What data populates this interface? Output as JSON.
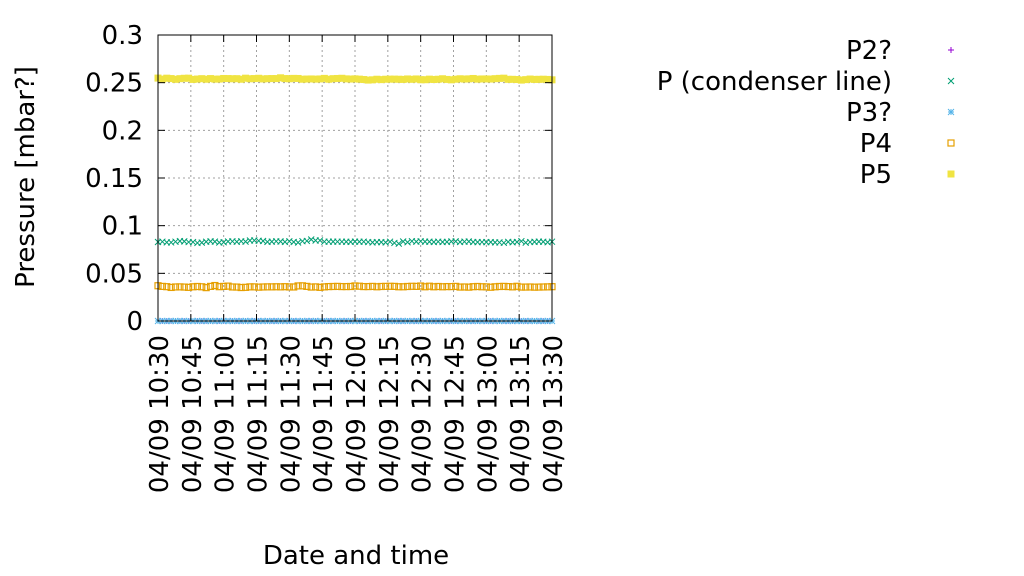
{
  "chart_data": {
    "type": "scatter",
    "xlabel": "Date and time",
    "ylabel": "Pressure [mbar?]",
    "ylim": [
      0,
      0.3
    ],
    "yticks": [
      0,
      0.05,
      0.1,
      0.15,
      0.2,
      0.25,
      0.3
    ],
    "ytick_labels": [
      "0",
      "0.05",
      "0.1",
      "0.15",
      "0.2",
      "0.25",
      "0.3"
    ],
    "xlim": [
      "04/09 10:30",
      "04/09 13:30"
    ],
    "xtick_labels": [
      "04/09 10:30",
      "04/09 10:45",
      "04/09 11:00",
      "04/09 11:15",
      "04/09 11:30",
      "04/09 11:45",
      "04/09 12:00",
      "04/09 12:15",
      "04/09 12:30",
      "04/09 12:45",
      "04/09 13:00",
      "04/09 13:15",
      "04/09 13:30"
    ],
    "grid": true,
    "legend_position": "right",
    "x": [
      "10:30",
      "10:32",
      "10:34",
      "10:36",
      "10:38",
      "10:40",
      "10:42",
      "10:44",
      "10:46",
      "10:48",
      "10:50",
      "10:52",
      "10:54",
      "10:56",
      "10:58",
      "11:00",
      "11:02",
      "11:04",
      "11:06",
      "11:08",
      "11:10",
      "11:12",
      "11:14",
      "11:16",
      "11:18",
      "11:20",
      "11:22",
      "11:24",
      "11:26",
      "11:28",
      "11:30",
      "11:32",
      "11:34",
      "11:36",
      "11:38",
      "11:40",
      "11:42",
      "11:44",
      "11:46",
      "11:48",
      "11:50",
      "11:52",
      "11:54",
      "11:56",
      "11:58",
      "12:00",
      "12:02",
      "12:04",
      "12:06",
      "12:08",
      "12:10",
      "12:12",
      "12:14",
      "12:16",
      "12:18",
      "12:20",
      "12:22",
      "12:24",
      "12:26",
      "12:28",
      "12:30",
      "12:32",
      "12:34",
      "12:36",
      "12:38",
      "12:40",
      "12:42",
      "12:44",
      "12:46",
      "12:48",
      "12:50",
      "12:52",
      "12:54",
      "12:56",
      "12:58",
      "13:00",
      "13:02",
      "13:04",
      "13:06",
      "13:08",
      "13:10",
      "13:12",
      "13:14",
      "13:16",
      "13:18",
      "13:20",
      "13:22",
      "13:24",
      "13:26",
      "13:28",
      "13:30"
    ],
    "series": [
      {
        "name": "P2?",
        "marker": "plus",
        "color": "#9400d3",
        "values": [
          0.0,
          0.0,
          0.0,
          0.0,
          0.0,
          0.0,
          0.0,
          0.0,
          0.0,
          0.0,
          0.0,
          0.0,
          0.0,
          0.0,
          0.0,
          0.0,
          0.0,
          0.0,
          0.0,
          0.0,
          0.0,
          0.0,
          0.0,
          0.0,
          0.0,
          0.0,
          0.0,
          0.0,
          0.0,
          0.0,
          0.0,
          0.0,
          0.0,
          0.0,
          0.0,
          0.0,
          0.0,
          0.0,
          0.0,
          0.0,
          0.0,
          0.0,
          0.0,
          0.0,
          0.0,
          0.0,
          0.0,
          0.0,
          0.0,
          0.0,
          0.0,
          0.0,
          0.0,
          0.0,
          0.0,
          0.0,
          0.0,
          0.0,
          0.0,
          0.0,
          0.0,
          0.0,
          0.0,
          0.0,
          0.0,
          0.0,
          0.0,
          0.0,
          0.0,
          0.0,
          0.0,
          0.0,
          0.0,
          0.0,
          0.0,
          0.0,
          0.0,
          0.0,
          0.0,
          0.0,
          0.0,
          0.0,
          0.0,
          0.0,
          0.0,
          0.0,
          0.0,
          0.0,
          0.0,
          0.0,
          0.0
        ]
      },
      {
        "name": "P (condenser line)",
        "marker": "cross",
        "color": "#009e73",
        "values": [
          0.0829,
          0.0832,
          0.0825,
          0.0824,
          0.0832,
          0.0838,
          0.0835,
          0.0828,
          0.0828,
          0.0819,
          0.0822,
          0.0831,
          0.0835,
          0.0833,
          0.0823,
          0.0826,
          0.0834,
          0.0836,
          0.0831,
          0.0836,
          0.0833,
          0.0844,
          0.0845,
          0.0841,
          0.0839,
          0.083,
          0.0833,
          0.0836,
          0.0834,
          0.083,
          0.0836,
          0.0829,
          0.0823,
          0.0837,
          0.084,
          0.0855,
          0.0844,
          0.0845,
          0.0832,
          0.0832,
          0.0833,
          0.0832,
          0.0832,
          0.0831,
          0.083,
          0.0833,
          0.0831,
          0.0832,
          0.0828,
          0.0825,
          0.0827,
          0.0827,
          0.0825,
          0.0832,
          0.0819,
          0.0812,
          0.0834,
          0.0826,
          0.0837,
          0.0833,
          0.0836,
          0.0833,
          0.0831,
          0.0829,
          0.0832,
          0.0829,
          0.083,
          0.0834,
          0.0835,
          0.0829,
          0.0832,
          0.0834,
          0.0829,
          0.0827,
          0.0828,
          0.0827,
          0.0827,
          0.0825,
          0.0824,
          0.082,
          0.083,
          0.0826,
          0.0829,
          0.0837,
          0.0822,
          0.0828,
          0.083,
          0.0833,
          0.0831,
          0.0826,
          0.0832
        ]
      },
      {
        "name": "P3?",
        "marker": "star",
        "color": "#56b4e9",
        "values": [
          0.0,
          0.0,
          0.0,
          0.0,
          0.0,
          0.0,
          0.0,
          0.0,
          0.0,
          0.0,
          0.0,
          0.0,
          0.0,
          0.0,
          0.0,
          0.0,
          0.0,
          0.0,
          0.0,
          0.0,
          0.0,
          0.0,
          0.0,
          0.0,
          0.0,
          0.0,
          0.0,
          0.0,
          0.0,
          0.0,
          0.0,
          0.0,
          0.0,
          0.0,
          0.0,
          0.0,
          0.0,
          0.0,
          0.0,
          0.0,
          0.0,
          0.0,
          0.0,
          0.0,
          0.0,
          0.0,
          0.0,
          0.0,
          0.0,
          0.0,
          0.0,
          0.0,
          0.0,
          0.0,
          0.0,
          0.0,
          0.0,
          0.0,
          0.0,
          0.0,
          0.0,
          0.0,
          0.0,
          0.0,
          0.0,
          0.0,
          0.0,
          0.0,
          0.0,
          0.0,
          0.0,
          0.0,
          0.0,
          0.0,
          0.0,
          0.0,
          0.0,
          0.0,
          0.0,
          0.0,
          0.0,
          0.0,
          0.0,
          0.0,
          0.0,
          0.0,
          0.0,
          0.0,
          0.0,
          0.0,
          0.0
        ]
      },
      {
        "name": "P4",
        "marker": "open-square",
        "color": "#e69f00",
        "values": [
          0.037,
          0.0363,
          0.036,
          0.0352,
          0.0357,
          0.0358,
          0.0356,
          0.0353,
          0.0359,
          0.0362,
          0.0359,
          0.035,
          0.0363,
          0.0372,
          0.036,
          0.0363,
          0.0366,
          0.0357,
          0.0356,
          0.0351,
          0.0353,
          0.0358,
          0.0358,
          0.0355,
          0.0357,
          0.0358,
          0.0358,
          0.0359,
          0.0358,
          0.036,
          0.0357,
          0.0357,
          0.0368,
          0.0369,
          0.0363,
          0.0356,
          0.0358,
          0.0353,
          0.0358,
          0.0361,
          0.0362,
          0.0363,
          0.0361,
          0.0361,
          0.0362,
          0.0368,
          0.0365,
          0.0361,
          0.0361,
          0.0363,
          0.0359,
          0.0362,
          0.0363,
          0.0364,
          0.0363,
          0.0359,
          0.0359,
          0.0362,
          0.0364,
          0.0363,
          0.0367,
          0.0359,
          0.0365,
          0.0359,
          0.0362,
          0.0359,
          0.0361,
          0.0361,
          0.0363,
          0.0356,
          0.0357,
          0.0355,
          0.036,
          0.0362,
          0.0359,
          0.0358,
          0.0354,
          0.0359,
          0.0362,
          0.0363,
          0.0361,
          0.0358,
          0.0364,
          0.0356,
          0.0356,
          0.0357,
          0.0355,
          0.0356,
          0.0357,
          0.0358,
          0.036
        ]
      },
      {
        "name": "P5",
        "marker": "filled-square",
        "color": "#f0e442",
        "values": [
          0.2548,
          0.2537,
          0.2547,
          0.2543,
          0.2535,
          0.2542,
          0.2546,
          0.2547,
          0.2534,
          0.2538,
          0.2542,
          0.2536,
          0.2543,
          0.2537,
          0.2538,
          0.2544,
          0.2543,
          0.2541,
          0.2542,
          0.2536,
          0.2547,
          0.2541,
          0.2543,
          0.2546,
          0.2539,
          0.2542,
          0.2543,
          0.2543,
          0.2551,
          0.2543,
          0.2541,
          0.2545,
          0.2544,
          0.2536,
          0.2538,
          0.2539,
          0.2537,
          0.2539,
          0.2545,
          0.2536,
          0.2542,
          0.2544,
          0.2546,
          0.254,
          0.2538,
          0.254,
          0.2537,
          0.2533,
          0.2527,
          0.253,
          0.2536,
          0.2532,
          0.2536,
          0.2537,
          0.2537,
          0.2536,
          0.2534,
          0.2539,
          0.2535,
          0.2539,
          0.2531,
          0.2531,
          0.2537,
          0.2533,
          0.2536,
          0.2541,
          0.2534,
          0.253,
          0.2536,
          0.2541,
          0.2538,
          0.254,
          0.2544,
          0.2537,
          0.2539,
          0.2539,
          0.2538,
          0.2542,
          0.2545,
          0.2547,
          0.2535,
          0.2535,
          0.2533,
          0.2527,
          0.2532,
          0.2538,
          0.2534,
          0.2535,
          0.2536,
          0.2534,
          0.253
        ]
      }
    ]
  }
}
